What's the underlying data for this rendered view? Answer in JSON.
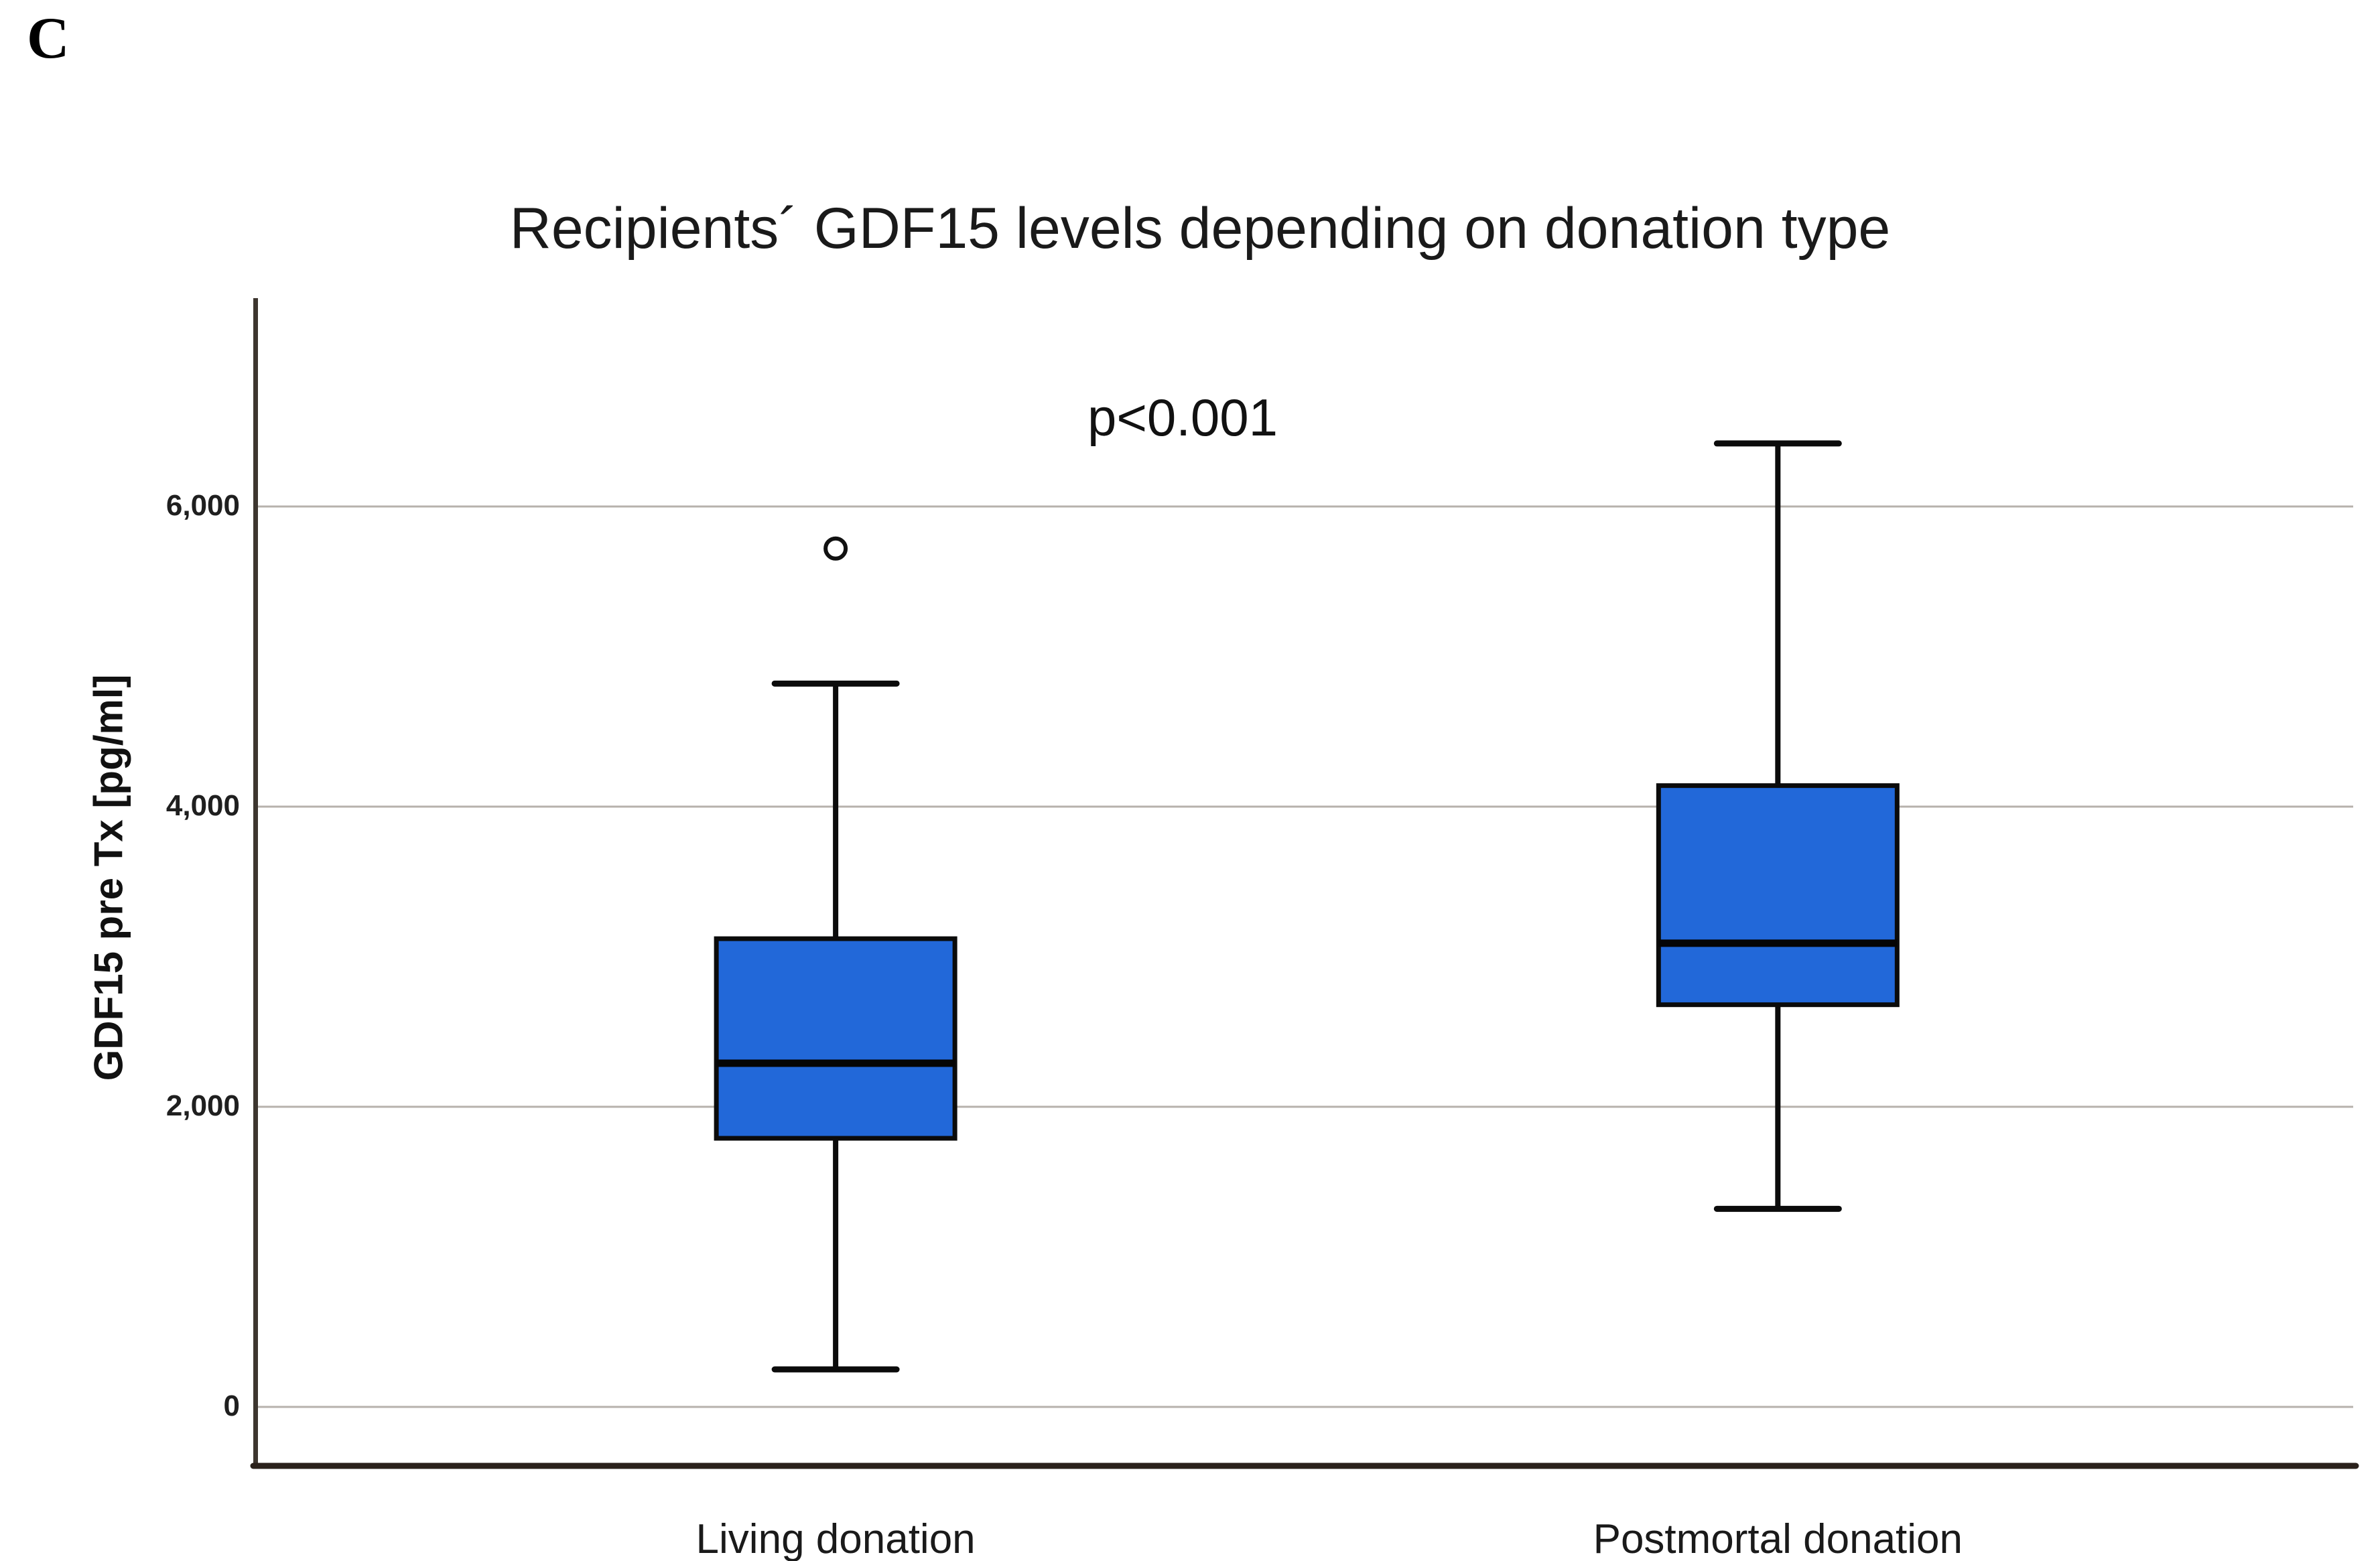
{
  "figure_label": "C",
  "chart_data": {
    "type": "boxplot",
    "title": "Recipients´ GDF15 levels depending on donation type",
    "annotation": "p<0.001",
    "xlabel": "",
    "ylabel": "GDF15 pre Tx [pg/ml]",
    "units": "pg/ml",
    "ylim": [
      0,
      7400
    ],
    "grid": "horizontal-gridlines",
    "legend": "none",
    "yticks": [
      {
        "value": 0,
        "label": "0"
      },
      {
        "value": 2000,
        "label": "2,000"
      },
      {
        "value": 4000,
        "label": "4,000"
      },
      {
        "value": 6000,
        "label": "6,000"
      }
    ],
    "categories": [
      "Living donation",
      "Postmortal donation"
    ],
    "series": [
      {
        "category": "Living donation",
        "whisker_low": 250,
        "q1": 1790,
        "median": 2290,
        "q3": 3120,
        "whisker_high": 4820,
        "outliers": [
          5720
        ]
      },
      {
        "category": "Postmortal donation",
        "whisker_low": 1320,
        "q1": 2680,
        "median": 3090,
        "q3": 4140,
        "whisker_high": 6420,
        "outliers": []
      }
    ],
    "colors": {
      "box_fill": "#2268d9",
      "box_stroke": "#0b0b0b",
      "median_stroke": "#050505",
      "whisker_stroke": "#0b0b0b",
      "outlier_stroke": "#111111",
      "gridline": "#b7b2ac",
      "y_axis_line": "#3d362f",
      "x_axis_line": "#2a211b",
      "text": "#1a1a1a"
    }
  }
}
